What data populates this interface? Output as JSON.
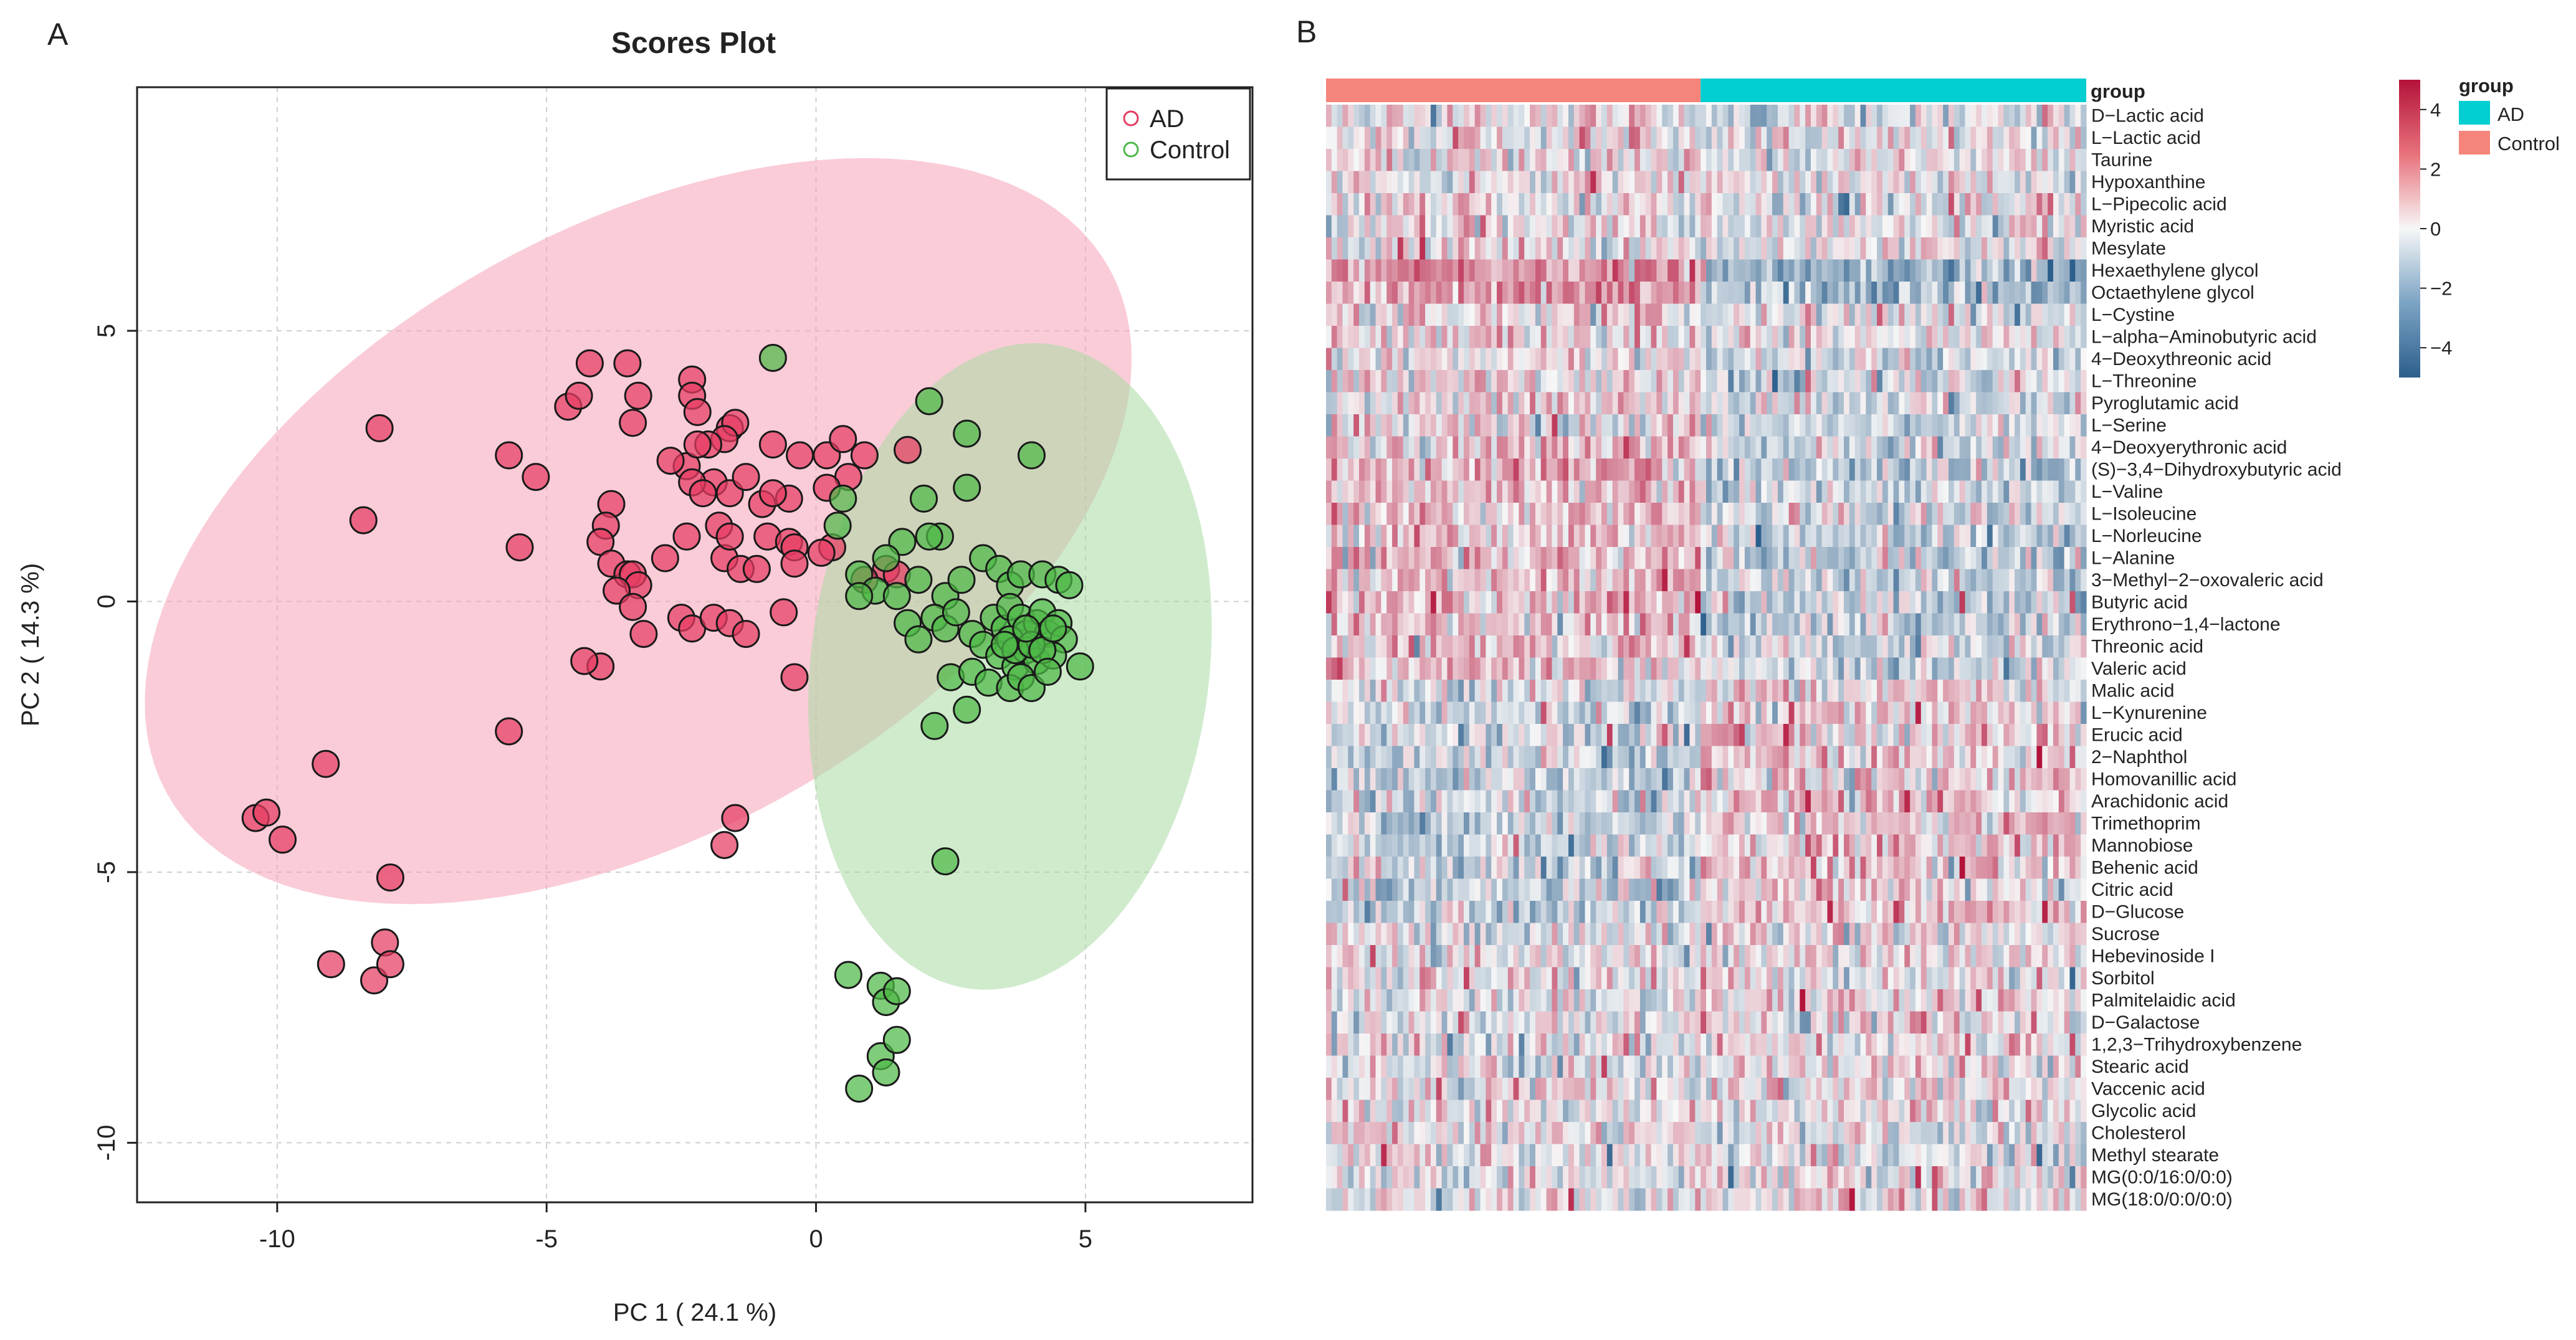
{
  "panels": {
    "a_label": "A",
    "b_label": "B"
  },
  "colors": {
    "ad_point": "#e63b62",
    "control_point": "#4db847",
    "ad_ellipse": "#f5a3b8",
    "control_ellipse": "#a8dba3",
    "heat_high": "#b3123a",
    "heat_mid": "#f7f7f7",
    "heat_low": "#2c5f8c",
    "group_ad": "#00ced1",
    "group_control": "#f5857b"
  },
  "chart_data": [
    {
      "type": "scatter",
      "title": "Scores Plot",
      "xlabel": "PC 1 ( 24.1 %)",
      "ylabel": "PC 2 ( 14.3 %)",
      "xlim": [
        -12.6,
        8.1
      ],
      "ylim": [
        -11.1,
        9.5
      ],
      "xticks": [
        -10,
        -5,
        0,
        5
      ],
      "yticks": [
        -10,
        -5,
        0,
        5
      ],
      "grid": true,
      "legend_position": "top-right",
      "legend": [
        "AD",
        "Control"
      ],
      "ellipses": [
        {
          "group": "AD",
          "cx": -3.3,
          "cy": 1.3,
          "rx": 10.0,
          "ry": 5.6,
          "angle_deg": 29
        },
        {
          "group": "Control",
          "cx": 3.6,
          "cy": -1.2,
          "rx": 6.0,
          "ry": 3.7,
          "angle_deg": 83
        }
      ],
      "series": [
        {
          "name": "AD",
          "points": [
            [
              -8.1,
              3.2
            ],
            [
              -8.4,
              1.5
            ],
            [
              -9.1,
              -3.0
            ],
            [
              -10.4,
              -4.0
            ],
            [
              -10.2,
              -3.9
            ],
            [
              -9.9,
              -4.4
            ],
            [
              -7.9,
              -5.1
            ],
            [
              -9.0,
              -6.7
            ],
            [
              -8.2,
              -7.0
            ],
            [
              -8.0,
              -6.3
            ],
            [
              -7.9,
              -6.7
            ],
            [
              -5.7,
              2.7
            ],
            [
              -5.2,
              2.3
            ],
            [
              -4.6,
              3.6
            ],
            [
              -4.4,
              3.8
            ],
            [
              -4.2,
              4.4
            ],
            [
              -3.5,
              4.4
            ],
            [
              -3.4,
              3.3
            ],
            [
              -3.3,
              3.8
            ],
            [
              -2.3,
              4.1
            ],
            [
              -2.3,
              3.8
            ],
            [
              -2.2,
              3.5
            ],
            [
              -1.6,
              3.2
            ],
            [
              -1.5,
              3.3
            ],
            [
              -1.7,
              3.0
            ],
            [
              -2.0,
              2.9
            ],
            [
              -2.4,
              2.5
            ],
            [
              -2.7,
              2.6
            ],
            [
              -2.2,
              2.9
            ],
            [
              -1.9,
              2.2
            ],
            [
              -2.3,
              2.2
            ],
            [
              -2.1,
              2.0
            ],
            [
              -1.6,
              2.0
            ],
            [
              -1.3,
              2.3
            ],
            [
              -1.0,
              1.8
            ],
            [
              -0.8,
              2.9
            ],
            [
              -0.3,
              2.7
            ],
            [
              -0.5,
              1.9
            ],
            [
              -0.8,
              2.0
            ],
            [
              -3.8,
              1.8
            ],
            [
              -3.9,
              1.4
            ],
            [
              -4.0,
              1.1
            ],
            [
              -3.8,
              0.7
            ],
            [
              -3.5,
              0.5
            ],
            [
              -3.4,
              0.5
            ],
            [
              -3.3,
              0.3
            ],
            [
              -2.8,
              0.8
            ],
            [
              -2.4,
              1.2
            ],
            [
              -1.8,
              1.4
            ],
            [
              -1.7,
              0.8
            ],
            [
              -1.6,
              1.2
            ],
            [
              -1.4,
              0.6
            ],
            [
              -1.1,
              0.6
            ],
            [
              -0.9,
              1.2
            ],
            [
              -0.5,
              1.1
            ],
            [
              -0.4,
              1.0
            ],
            [
              -3.7,
              0.2
            ],
            [
              -3.4,
              -0.1
            ],
            [
              -3.2,
              -0.6
            ],
            [
              -2.5,
              -0.3
            ],
            [
              -2.3,
              -0.5
            ],
            [
              -1.9,
              -0.3
            ],
            [
              -1.6,
              -0.4
            ],
            [
              -1.3,
              -0.6
            ],
            [
              -0.6,
              -0.2
            ],
            [
              -5.5,
              1.0
            ],
            [
              -4.0,
              -1.2
            ],
            [
              -4.3,
              -1.1
            ],
            [
              -5.7,
              -2.4
            ],
            [
              -1.5,
              -4.0
            ],
            [
              -1.7,
              -4.5
            ],
            [
              -0.4,
              -1.4
            ],
            [
              0.2,
              2.7
            ],
            [
              0.5,
              3.0
            ],
            [
              0.9,
              2.7
            ],
            [
              0.6,
              2.3
            ],
            [
              0.2,
              2.1
            ],
            [
              1.7,
              2.8
            ],
            [
              1.3,
              0.6
            ],
            [
              1.5,
              0.5
            ],
            [
              0.9,
              0.4
            ],
            [
              0.3,
              1.0
            ],
            [
              -0.4,
              0.7
            ],
            [
              0.1,
              0.9
            ]
          ]
        },
        {
          "name": "Control",
          "points": [
            [
              -0.8,
              4.5
            ],
            [
              2.1,
              3.7
            ],
            [
              2.8,
              3.1
            ],
            [
              4.0,
              2.7
            ],
            [
              2.0,
              1.9
            ],
            [
              2.8,
              2.1
            ],
            [
              0.5,
              1.9
            ],
            [
              0.4,
              1.4
            ],
            [
              1.6,
              1.1
            ],
            [
              2.3,
              1.2
            ],
            [
              2.1,
              1.2
            ],
            [
              1.3,
              0.8
            ],
            [
              1.9,
              0.4
            ],
            [
              0.8,
              0.5
            ],
            [
              1.1,
              0.2
            ],
            [
              0.8,
              0.1
            ],
            [
              1.5,
              0.1
            ],
            [
              2.4,
              0.1
            ],
            [
              2.7,
              0.4
            ],
            [
              3.1,
              0.8
            ],
            [
              3.4,
              0.6
            ],
            [
              3.6,
              0.3
            ],
            [
              3.8,
              0.5
            ],
            [
              4.2,
              0.5
            ],
            [
              4.5,
              0.4
            ],
            [
              4.7,
              0.3
            ],
            [
              1.7,
              -0.4
            ],
            [
              1.9,
              -0.7
            ],
            [
              2.2,
              -0.3
            ],
            [
              2.4,
              -0.5
            ],
            [
              2.6,
              -0.2
            ],
            [
              2.9,
              -0.6
            ],
            [
              3.1,
              -0.8
            ],
            [
              3.3,
              -0.3
            ],
            [
              3.5,
              -0.5
            ],
            [
              3.6,
              -0.1
            ],
            [
              3.8,
              -0.3
            ],
            [
              3.9,
              -0.6
            ],
            [
              4.1,
              -0.4
            ],
            [
              4.2,
              -0.2
            ],
            [
              4.3,
              -0.6
            ],
            [
              4.5,
              -0.4
            ],
            [
              4.6,
              -0.7
            ],
            [
              3.4,
              -1.0
            ],
            [
              3.7,
              -1.2
            ],
            [
              3.9,
              -0.9
            ],
            [
              4.1,
              -1.1
            ],
            [
              4.4,
              -1.0
            ],
            [
              4.9,
              -1.2
            ],
            [
              2.5,
              -1.4
            ],
            [
              2.9,
              -1.3
            ],
            [
              3.2,
              -1.5
            ],
            [
              3.6,
              -1.6
            ],
            [
              3.8,
              -1.4
            ],
            [
              4.0,
              -1.6
            ],
            [
              2.8,
              -2.0
            ],
            [
              2.2,
              -2.3
            ],
            [
              2.4,
              -4.8
            ],
            [
              0.6,
              -6.9
            ],
            [
              1.2,
              -7.1
            ],
            [
              1.3,
              -7.4
            ],
            [
              1.5,
              -7.2
            ],
            [
              1.2,
              -8.4
            ],
            [
              1.5,
              -8.1
            ],
            [
              1.3,
              -8.7
            ],
            [
              0.8,
              -9.0
            ],
            [
              3.6,
              -0.7
            ],
            [
              3.7,
              -0.9
            ],
            [
              4.0,
              -0.8
            ],
            [
              4.2,
              -0.9
            ],
            [
              3.9,
              -0.5
            ],
            [
              4.4,
              -0.5
            ],
            [
              3.5,
              -0.8
            ],
            [
              4.3,
              -1.3
            ]
          ]
        }
      ]
    },
    {
      "type": "heatmap",
      "group_label": "group",
      "legend_title": "group",
      "legend_groups": [
        "AD",
        "Control"
      ],
      "column_groups": [
        {
          "name": "Control",
          "count": 68
        },
        {
          "name": "AD",
          "count": 70
        }
      ],
      "scale_min": -5,
      "scale_max": 5,
      "scale_ticks": [
        4,
        2,
        0,
        -2,
        -4
      ],
      "rows": [
        "D−Lactic acid",
        "L−Lactic acid",
        "Taurine",
        "Hypoxanthine",
        "L−Pipecolic acid",
        "Myristic acid",
        "Mesylate",
        "Hexaethylene glycol",
        "Octaethylene glycol",
        "L−Cystine",
        "L−alpha−Aminobutyric acid",
        "4−Deoxythreonic acid",
        "L−Threonine",
        "Pyroglutamic acid",
        "L−Serine",
        "4−Deoxyerythronic acid",
        "(S)−3,4−Dihydroxybutyric acid",
        "L−Valine",
        "L−Isoleucine",
        "L−Norleucine",
        "L−Alanine",
        "3−Methyl−2−oxovaleric acid",
        "Butyric acid",
        "Erythrono−1,4−lactone",
        "Threonic acid",
        "Valeric acid",
        "Malic acid",
        "L−Kynurenine",
        "Erucic acid",
        "2−Naphthol",
        "Homovanillic acid",
        "Arachidonic acid",
        "Trimethoprim",
        "Mannobiose",
        "Behenic acid",
        "Citric acid",
        "D−Glucose",
        "Sucrose",
        "Hebevinoside I",
        "Sorbitol",
        "Palmitelaidic acid",
        "D−Galactose",
        "1,2,3−Trihydroxybenzene",
        "Stearic acid",
        "Vaccenic acid",
        "Glycolic acid",
        "Cholesterol",
        "Methyl stearate",
        "MG(0:0/16:0/0:0)",
        "MG(18:0/0:0/0:0)"
      ],
      "row_trend": [
        0.2,
        0.0,
        0.1,
        0.1,
        0.1,
        0.1,
        0.3,
        1.8,
        1.5,
        0.1,
        0.3,
        0.5,
        0.6,
        0.6,
        0.6,
        0.6,
        1.2,
        0.8,
        0.8,
        0.8,
        0.9,
        0.9,
        1.1,
        0.8,
        0.7,
        0.6,
        -0.6,
        -0.6,
        -0.7,
        -0.8,
        -0.9,
        -0.7,
        -0.8,
        -0.8,
        -0.7,
        -0.7,
        -0.8,
        -0.2,
        -0.1,
        -0.1,
        -0.3,
        -0.2,
        -0.1,
        -0.2,
        -0.2,
        -0.1,
        0.2,
        0.0,
        -0.2,
        -0.2
      ]
    }
  ]
}
